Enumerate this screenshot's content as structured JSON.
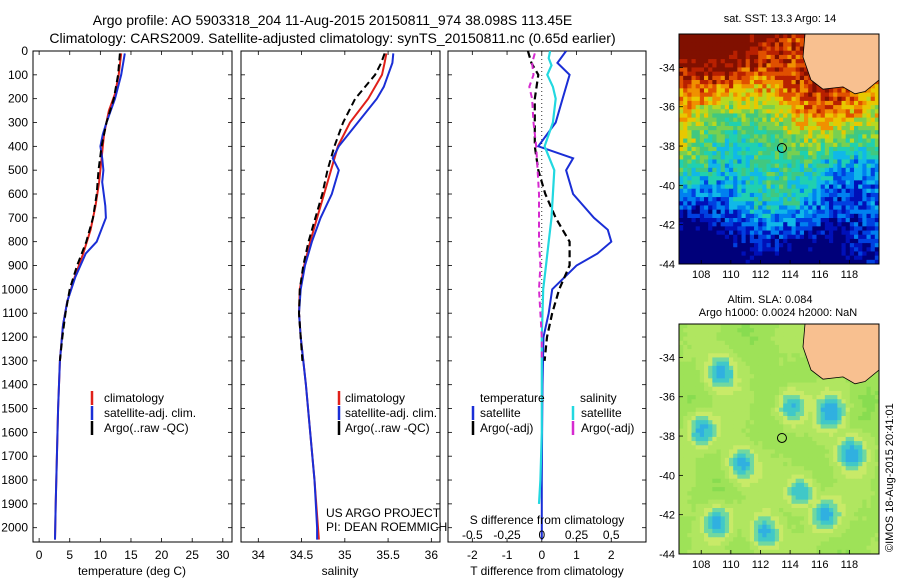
{
  "header": {
    "title_line1": "Argo profile: AO 5903318_204 11-Aug-2015 20150811_974 38.098S 113.45E",
    "title_line2": "Climatology: CARS2009. Satellite-adjusted climatology: synTS_20150811.nc (0.65d earlier)"
  },
  "colors": {
    "climatology": "#e0201a",
    "satellite": "#1a2ed6",
    "argo": "#000000",
    "sal_satellite": "#22d8e0",
    "sal_argo": "#d62ad0",
    "land": "#f8c090"
  },
  "depth_axis": {
    "ticks": [
      "0",
      "100",
      "200",
      "300",
      "400",
      "500",
      "600",
      "700",
      "800",
      "900",
      "1000",
      "1100",
      "1200",
      "1300",
      "1400",
      "1500",
      "1600",
      "1700",
      "1800",
      "1900",
      "2000"
    ],
    "ylim": [
      2060,
      0
    ]
  },
  "chart_data": [
    {
      "id": "temperature",
      "type": "line",
      "xlabel": "temperature (deg C)",
      "xlim": [
        -1,
        31.5
      ],
      "xticks": [
        "0",
        "5",
        "10",
        "15",
        "20",
        "25",
        "30"
      ],
      "legend": [
        "climatology",
        "satellite-adj. clim.",
        "Argo(..raw -QC)"
      ],
      "series": [
        {
          "name": "climatology",
          "depth": [
            10,
            100,
            180,
            250,
            350,
            450,
            550,
            650,
            750,
            850,
            950,
            1050,
            1150,
            1300,
            1500,
            1700,
            1900,
            2050
          ],
          "values": [
            13.4,
            13.0,
            12.4,
            11.4,
            10.6,
            10.2,
            9.8,
            9.2,
            8.4,
            7.2,
            5.8,
            4.6,
            3.9,
            3.4,
            3.1,
            2.9,
            2.7,
            2.6
          ]
        },
        {
          "name": "satellite-adj. clim.",
          "depth": [
            10,
            100,
            200,
            300,
            350,
            400,
            450,
            500,
            550,
            650,
            700,
            800,
            850,
            950,
            1050,
            1150,
            1300,
            1500,
            1700,
            1900,
            2050
          ],
          "values": [
            14.0,
            13.4,
            12.4,
            11.0,
            10.4,
            10.0,
            10.3,
            10.5,
            10.3,
            10.8,
            10.9,
            9.4,
            7.6,
            5.9,
            4.6,
            3.9,
            3.4,
            3.1,
            2.9,
            2.7,
            2.6
          ]
        },
        {
          "name": "Argo(..raw -QC)",
          "depth": [
            10,
            100,
            200,
            300,
            400,
            500,
            600,
            700,
            800,
            900,
            1000,
            1100,
            1200,
            1300
          ],
          "values": [
            13.2,
            12.9,
            12.2,
            11.0,
            10.2,
            9.7,
            9.4,
            8.8,
            7.7,
            6.2,
            5.0,
            4.3,
            3.8,
            3.4
          ]
        }
      ]
    },
    {
      "id": "salinity",
      "type": "line",
      "xlabel": "salinity",
      "xlim": [
        33.8,
        36.1
      ],
      "xticks": [
        "34",
        "34.5",
        "35",
        "35.5",
        "36"
      ],
      "legend": [
        "climatology",
        "satellite-adj. clim.",
        "Argo(..raw -QC)"
      ],
      "note": [
        "US ARGO PROJECT",
        "PI: DEAN ROEMMICH"
      ],
      "series": [
        {
          "name": "climatology",
          "depth": [
            10,
            50,
            100,
            200,
            300,
            400,
            500,
            600,
            700,
            800,
            900,
            1000,
            1100,
            1200,
            1400,
            1600,
            1800,
            2000,
            2050
          ],
          "values": [
            35.48,
            35.46,
            35.43,
            35.27,
            35.06,
            34.92,
            34.84,
            34.76,
            34.68,
            34.6,
            34.53,
            34.48,
            34.47,
            34.49,
            34.55,
            34.6,
            34.65,
            34.69,
            34.7
          ]
        },
        {
          "name": "satellite-adj. clim.",
          "depth": [
            10,
            50,
            100,
            150,
            200,
            300,
            400,
            450,
            500,
            600,
            700,
            800,
            900,
            1000,
            1100,
            1200,
            1400,
            1600,
            1800,
            2000,
            2050
          ],
          "values": [
            35.56,
            35.55,
            35.5,
            35.45,
            35.37,
            35.15,
            34.93,
            34.86,
            34.93,
            34.85,
            34.72,
            34.62,
            34.54,
            34.49,
            34.47,
            34.49,
            34.55,
            34.6,
            34.65,
            34.68,
            34.68
          ]
        },
        {
          "name": "Argo(..raw -QC)",
          "depth": [
            10,
            50,
            100,
            200,
            300,
            400,
            500,
            600,
            700,
            800,
            900,
            1000,
            1100,
            1200,
            1300
          ],
          "values": [
            35.46,
            35.42,
            35.35,
            35.12,
            34.98,
            34.88,
            34.8,
            34.74,
            34.66,
            34.58,
            34.52,
            34.48,
            34.47,
            34.49,
            34.51
          ]
        }
      ]
    },
    {
      "id": "difference",
      "type": "line",
      "xlabel": "T difference from climatology",
      "xlim": [
        -2.7,
        3.0
      ],
      "xticks": [
        "-2",
        "-1",
        "0",
        "1",
        "2"
      ],
      "s_xlabel": "S difference from climatology",
      "s_xticks": [
        "-0.5",
        "-0.25",
        "0",
        "0.25",
        "0.5"
      ],
      "legend_temperature_title": "temperature",
      "legend_salinity_title": "salinity",
      "legend_temperature": [
        "satellite",
        "Argo(-adj)"
      ],
      "legend_salinity": [
        "satellite",
        "Argo(-adj)"
      ],
      "series": [
        {
          "name": "temperature satellite",
          "depth": [
            0,
            50,
            100,
            200,
            300,
            400,
            450,
            500,
            600,
            700,
            750,
            800,
            850,
            900,
            1000,
            1100,
            1200,
            1400,
            1600,
            1800,
            2000,
            2050
          ],
          "values": [
            0.7,
            0.45,
            0.8,
            0.6,
            0.4,
            -0.1,
            0.9,
            0.7,
            0.9,
            1.5,
            1.9,
            2.0,
            1.6,
            1.0,
            0.3,
            0.2,
            0.05,
            0.02,
            0.01,
            0.0,
            0.0,
            0.0
          ]
        },
        {
          "name": "temperature Argo(-adj)",
          "depth": [
            0,
            50,
            100,
            200,
            300,
            400,
            500,
            600,
            700,
            750,
            800,
            900,
            1000,
            1100,
            1200,
            1300
          ],
          "values": [
            -0.4,
            -0.3,
            -0.1,
            -0.2,
            -0.2,
            -0.2,
            -0.1,
            0.1,
            0.4,
            0.6,
            0.8,
            0.8,
            0.5,
            0.3,
            0.15,
            0.08
          ]
        },
        {
          "name": "salinity satellite",
          "depth": [
            0,
            30,
            60,
            100,
            150,
            200,
            300,
            400,
            500,
            600,
            700,
            800,
            900,
            1000,
            1200,
            1400,
            1600,
            1800,
            1900
          ],
          "values": [
            0.06,
            0.05,
            0.07,
            0.04,
            0.08,
            0.1,
            0.08,
            0.02,
            0.09,
            0.08,
            0.07,
            0.05,
            0.03,
            0.01,
            0.0,
            0.0,
            0.0,
            -0.01,
            -0.02
          ]
        },
        {
          "name": "salinity Argo(-adj)",
          "depth": [
            10,
            50,
            100,
            150,
            200,
            300,
            400,
            500,
            600,
            700,
            800,
            900,
            1000,
            1100,
            1200,
            1300
          ],
          "values": [
            -0.05,
            -0.07,
            -0.06,
            -0.09,
            -0.07,
            -0.06,
            -0.04,
            -0.03,
            -0.02,
            -0.02,
            -0.02,
            -0.01,
            -0.02,
            -0.01,
            0.0,
            0.0
          ]
        }
      ]
    }
  ],
  "maps": {
    "sst": {
      "title": "sat. SST: 13.3 Argo: 14",
      "yticks": [
        "-34",
        "-36",
        "-38",
        "-40",
        "-42",
        "-44"
      ],
      "xticks": [
        "108",
        "110",
        "112",
        "114",
        "116",
        "118"
      ]
    },
    "sla": {
      "title_line1": "Altim. SLA: 0.084",
      "title_line2": "Argo h1000: 0.0024 h2000: NaN",
      "yticks": [
        "-34",
        "-36",
        "-38",
        "-40",
        "-42",
        "-44"
      ],
      "xticks": [
        "108",
        "110",
        "112",
        "114",
        "116",
        "118"
      ]
    }
  },
  "stamp": "©IMOS 18-Aug-2015 20:41:01"
}
